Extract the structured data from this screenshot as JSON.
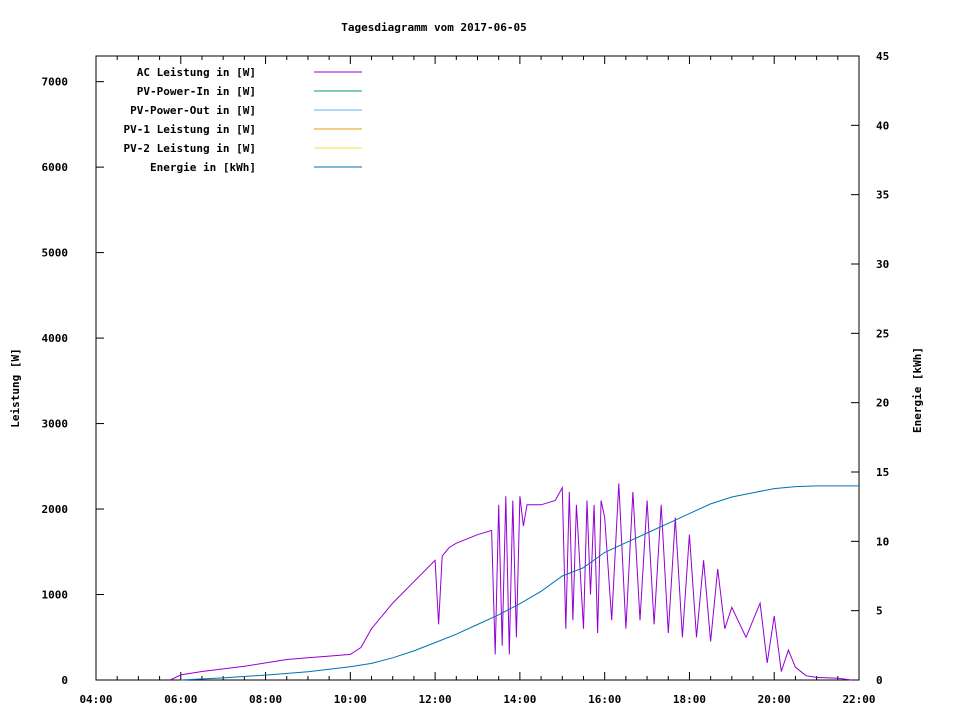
{
  "chart_data": {
    "type": "line",
    "title": "Tagesdiagramm vom 2017-06-05",
    "ylabel": "Leistung [W]",
    "y2label": "Energie [kWh]",
    "xlim": [
      "04:00",
      "22:00"
    ],
    "ylim": [
      0,
      7300
    ],
    "y2lim": [
      0,
      45
    ],
    "x_ticks": [
      "04:00",
      "06:00",
      "08:00",
      "10:00",
      "12:00",
      "14:00",
      "16:00",
      "18:00",
      "20:00",
      "22:00"
    ],
    "y_ticks": [
      "0",
      "1000",
      "2000",
      "3000",
      "4000",
      "5000",
      "6000",
      "7000"
    ],
    "y2_ticks": [
      "0",
      "5",
      "10",
      "15",
      "20",
      "25",
      "30",
      "35",
      "40",
      "45"
    ],
    "legend_position": "top-left",
    "grid": false,
    "series": [
      {
        "name": "AC Leistung in [W]",
        "axis": "left",
        "color": "#9400d3",
        "x": [
          "05:45",
          "06:00",
          "06:30",
          "07:00",
          "07:30",
          "08:00",
          "08:30",
          "09:00",
          "09:30",
          "10:00",
          "10:15",
          "10:30",
          "10:45",
          "11:00",
          "11:30",
          "12:00",
          "12:05",
          "12:10",
          "12:20",
          "12:30",
          "13:00",
          "13:20",
          "13:25",
          "13:30",
          "13:35",
          "13:40",
          "13:45",
          "13:50",
          "13:55",
          "14:00",
          "14:05",
          "14:10",
          "14:30",
          "14:50",
          "15:00",
          "15:05",
          "15:10",
          "15:15",
          "15:20",
          "15:30",
          "15:35",
          "15:40",
          "15:45",
          "15:50",
          "15:55",
          "16:00",
          "16:10",
          "16:20",
          "16:30",
          "16:40",
          "16:50",
          "17:00",
          "17:10",
          "17:20",
          "17:30",
          "17:40",
          "17:50",
          "18:00",
          "18:10",
          "18:20",
          "18:30",
          "18:40",
          "18:50",
          "19:00",
          "19:20",
          "19:40",
          "19:50",
          "20:00",
          "20:10",
          "20:20",
          "20:30",
          "20:45",
          "21:00",
          "21:30",
          "21:50"
        ],
        "values": [
          0,
          60,
          100,
          130,
          160,
          200,
          240,
          260,
          280,
          300,
          380,
          600,
          750,
          900,
          1150,
          1400,
          650,
          1450,
          1550,
          1600,
          1700,
          1750,
          300,
          2050,
          400,
          2150,
          300,
          2100,
          500,
          2150,
          1800,
          2050,
          2050,
          2100,
          2250,
          600,
          2200,
          700,
          2050,
          600,
          2100,
          1000,
          2050,
          550,
          2100,
          1900,
          700,
          2300,
          600,
          2200,
          700,
          2100,
          650,
          2050,
          550,
          1900,
          500,
          1700,
          500,
          1400,
          450,
          1300,
          600,
          850,
          500,
          900,
          200,
          750,
          100,
          350,
          150,
          50,
          30,
          20,
          0
        ]
      },
      {
        "name": "PV-Power-In in [W]",
        "axis": "left",
        "color": "#009e73",
        "x": [],
        "values": []
      },
      {
        "name": "PV-Power-Out in [W]",
        "axis": "left",
        "color": "#56b4e9",
        "x": [],
        "values": []
      },
      {
        "name": "PV-1 Leistung in [W]",
        "axis": "left",
        "color": "#e69f00",
        "x": [],
        "values": []
      },
      {
        "name": "PV-2 Leistung in [W]",
        "axis": "left",
        "color": "#f0e442",
        "x": [],
        "values": []
      },
      {
        "name": "Energie in [kWh]",
        "axis": "right",
        "color": "#0072b2",
        "x": [
          "06:00",
          "07:00",
          "08:00",
          "09:00",
          "10:00",
          "10:30",
          "11:00",
          "11:30",
          "12:00",
          "12:30",
          "13:00",
          "13:30",
          "14:00",
          "14:30",
          "15:00",
          "15:30",
          "16:00",
          "16:30",
          "17:00",
          "17:30",
          "18:00",
          "18:30",
          "19:00",
          "19:30",
          "20:00",
          "20:30",
          "21:00",
          "21:30",
          "22:00"
        ],
        "values": [
          0.0,
          0.15,
          0.35,
          0.6,
          0.95,
          1.2,
          1.6,
          2.1,
          2.7,
          3.3,
          4.0,
          4.7,
          5.5,
          6.4,
          7.5,
          8.1,
          9.2,
          9.9,
          10.6,
          11.3,
          12.0,
          12.7,
          13.2,
          13.5,
          13.8,
          13.95,
          14.0,
          14.0,
          14.0
        ]
      }
    ]
  }
}
